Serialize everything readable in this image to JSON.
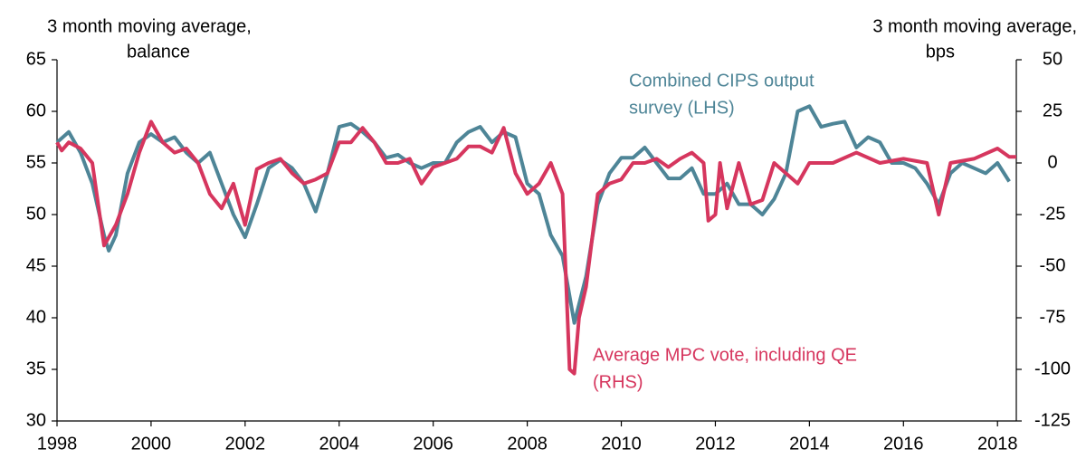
{
  "chart_data": {
    "type": "line",
    "ylabel": [
      "3 month moving average,",
      "balance"
    ],
    "y2label": [
      "3 month moving average,",
      "bps"
    ],
    "xlim": [
      1998,
      2018.4
    ],
    "xticks": [
      1998,
      2000,
      2002,
      2004,
      2006,
      2008,
      2010,
      2012,
      2014,
      2016,
      2018
    ],
    "ylim": [
      30,
      65
    ],
    "yticks": [
      30,
      35,
      40,
      45,
      50,
      55,
      60,
      65
    ],
    "y2lim": [
      -125,
      50
    ],
    "y2ticks": [
      -125,
      -100,
      -75,
      -50,
      -25,
      0,
      25,
      50
    ],
    "grid": false,
    "series": [
      {
        "name": [
          "Combined CIPS output",
          "survey (LHS)"
        ],
        "color": "#4e8597",
        "axis": "y",
        "x": [
          1998,
          1998.25,
          1998.5,
          1998.75,
          1999,
          1999.1,
          1999.25,
          1999.5,
          1999.75,
          2000,
          2000.25,
          2000.5,
          2000.75,
          2001,
          2001.25,
          2001.5,
          2001.75,
          2002,
          2002.25,
          2002.5,
          2002.75,
          2003,
          2003.25,
          2003.5,
          2003.75,
          2004,
          2004.25,
          2004.5,
          2004.75,
          2005,
          2005.25,
          2005.5,
          2005.75,
          2006,
          2006.25,
          2006.5,
          2006.75,
          2007,
          2007.25,
          2007.5,
          2007.75,
          2008,
          2008.25,
          2008.5,
          2008.75,
          2009,
          2009.25,
          2009.5,
          2009.75,
          2010,
          2010.25,
          2010.5,
          2010.75,
          2011,
          2011.25,
          2011.5,
          2011.75,
          2012,
          2012.25,
          2012.5,
          2012.75,
          2013,
          2013.25,
          2013.5,
          2013.75,
          2014,
          2014.25,
          2014.5,
          2014.75,
          2015,
          2015.25,
          2015.5,
          2015.75,
          2016,
          2016.25,
          2016.5,
          2016.75,
          2017,
          2017.25,
          2017.5,
          2017.75,
          2018,
          2018.25
        ],
        "values": [
          57,
          58,
          56,
          53,
          48,
          46.5,
          48,
          54,
          57,
          57.8,
          57,
          57.5,
          56,
          55,
          56,
          53,
          50,
          47.8,
          51,
          54.5,
          55.3,
          54.5,
          53,
          50.3,
          54,
          58.5,
          58.8,
          58,
          57,
          55.5,
          55.8,
          55,
          54.5,
          55,
          55,
          57,
          58,
          58.5,
          57,
          58,
          57.5,
          53,
          52,
          48,
          46,
          39.5,
          44,
          51,
          54,
          55.5,
          55.5,
          56.5,
          55,
          53.5,
          53.5,
          54.5,
          52,
          52,
          53,
          51,
          51,
          50,
          51.5,
          54,
          60,
          60.5,
          58.5,
          58.8,
          59,
          56.5,
          57.5,
          57,
          55,
          55,
          54.5,
          53,
          51,
          54,
          55,
          54.5,
          54,
          55,
          53.2
        ]
      },
      {
        "name": [
          "Average MPC vote, including QE",
          "(RHS)"
        ],
        "color": "#d6365e",
        "axis": "y2",
        "x": [
          1998,
          1998.1,
          1998.25,
          1998.5,
          1998.75,
          1999,
          1999.25,
          1999.5,
          1999.75,
          2000,
          2000.25,
          2000.5,
          2000.75,
          2001,
          2001.25,
          2001.5,
          2001.75,
          2002,
          2002.25,
          2002.5,
          2002.75,
          2003,
          2003.25,
          2003.5,
          2003.75,
          2004,
          2004.25,
          2004.5,
          2004.75,
          2005,
          2005.25,
          2005.5,
          2005.75,
          2006,
          2006.25,
          2006.5,
          2006.75,
          2007,
          2007.25,
          2007.5,
          2007.75,
          2008,
          2008.25,
          2008.5,
          2008.75,
          2008.9,
          2009,
          2009.1,
          2009.25,
          2009.5,
          2009.75,
          2010,
          2010.25,
          2010.5,
          2010.75,
          2011,
          2011.25,
          2011.5,
          2011.75,
          2011.85,
          2012,
          2012.1,
          2012.25,
          2012.5,
          2012.75,
          2013,
          2013.25,
          2013.5,
          2013.75,
          2014,
          2014.5,
          2015,
          2015.5,
          2016,
          2016.5,
          2016.75,
          2017,
          2017.5,
          2018,
          2018.25,
          2018.4
        ],
        "values": [
          10,
          6,
          10,
          7,
          0,
          -40,
          -30,
          -15,
          5,
          20,
          10,
          5,
          7,
          0,
          -15,
          -22,
          -10,
          -30,
          -3,
          0,
          2,
          -5,
          -10,
          -8,
          -5,
          10,
          10,
          17,
          10,
          0,
          0,
          2,
          -10,
          -2,
          0,
          2,
          8,
          8,
          5,
          17,
          -5,
          -15,
          -10,
          0,
          -15,
          -100,
          -102,
          -75,
          -60,
          -15,
          -10,
          -8,
          0,
          0,
          2,
          -2,
          2,
          5,
          0,
          -28,
          -25,
          0,
          -22,
          0,
          -20,
          -18,
          0,
          -5,
          -10,
          0,
          0,
          5,
          0,
          2,
          0,
          -25,
          0,
          2,
          7,
          3,
          3
        ]
      }
    ]
  }
}
